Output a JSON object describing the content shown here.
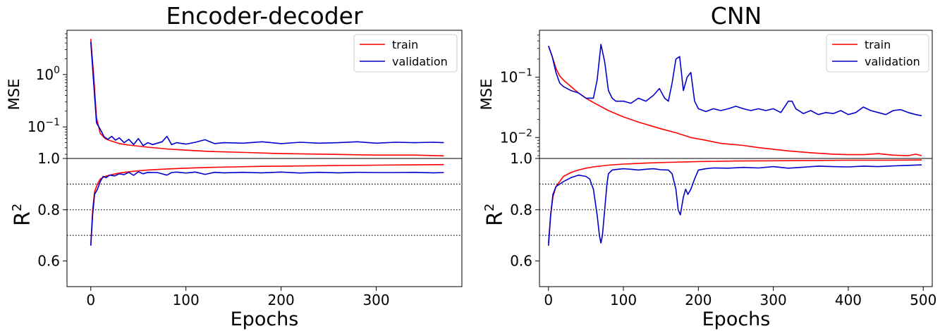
{
  "chart_data": [
    {
      "type": "line",
      "title": "Encoder-decoder",
      "xlabel": "Epochs",
      "xlim": [
        -25,
        390
      ],
      "xticks": [
        0,
        100,
        200,
        300
      ],
      "mse_panel": {
        "ylabel": "MSE",
        "yscale": "log",
        "ylim": [
          0.025,
          7
        ],
        "ytick_labels": [
          {
            "value": 1,
            "base": "10",
            "exp": "0"
          },
          {
            "value": 0.1,
            "base": "10",
            "exp": "−1"
          }
        ],
        "legend": {
          "placement": "top-right",
          "entries": [
            "train",
            "validation"
          ]
        },
        "series": [
          {
            "name": "train",
            "color": "#ff0000",
            "x": [
              0,
              3,
              6,
              10,
              15,
              20,
              30,
              40,
              50,
              60,
              80,
              100,
              125,
              150,
              175,
              200,
              250,
              300,
              340,
              371
            ],
            "y": [
              4.8,
              1.0,
              0.15,
              0.075,
              0.06,
              0.055,
              0.048,
              0.045,
              0.043,
              0.041,
              0.038,
              0.036,
              0.034,
              0.033,
              0.032,
              0.031,
              0.03,
              0.029,
              0.029,
              0.028
            ]
          },
          {
            "name": "validation",
            "color": "#0000cc",
            "x": [
              0,
              3,
              6,
              10,
              14,
              18,
              22,
              26,
              30,
              35,
              40,
              45,
              50,
              55,
              60,
              65,
              70,
              75,
              80,
              85,
              90,
              100,
              110,
              120,
              130,
              140,
              160,
              180,
              200,
              220,
              240,
              260,
              280,
              300,
              320,
              340,
              360,
              371
            ],
            "y": [
              4.2,
              0.7,
              0.12,
              0.09,
              0.065,
              0.058,
              0.066,
              0.056,
              0.062,
              0.05,
              0.058,
              0.046,
              0.06,
              0.044,
              0.05,
              0.046,
              0.049,
              0.052,
              0.066,
              0.046,
              0.05,
              0.047,
              0.051,
              0.057,
              0.048,
              0.05,
              0.049,
              0.052,
              0.048,
              0.051,
              0.049,
              0.05,
              0.052,
              0.049,
              0.051,
              0.05,
              0.051,
              0.05
            ]
          }
        ]
      },
      "r2_panel": {
        "ylabel": "R",
        "ylabel_sup": "2",
        "ylim": [
          0.5,
          1.0
        ],
        "yticks": [
          "1.0",
          "0.8",
          "0.6"
        ],
        "ytick_values": [
          1.0,
          0.8,
          0.6
        ],
        "dotted_lines": [
          0.9,
          0.8,
          0.7
        ],
        "series": [
          {
            "name": "train",
            "color": "#ff0000",
            "x": [
              0,
              2,
              4,
              7,
              10,
              15,
              20,
              30,
              40,
              50,
              60,
              80,
              100,
              125,
              150,
              175,
              200,
              250,
              300,
              340,
              371
            ],
            "y": [
              0.66,
              0.8,
              0.87,
              0.9,
              0.92,
              0.93,
              0.935,
              0.943,
              0.948,
              0.952,
              0.955,
              0.959,
              0.962,
              0.965,
              0.967,
              0.969,
              0.97,
              0.972,
              0.974,
              0.975,
              0.976
            ]
          },
          {
            "name": "validation",
            "color": "#0000cc",
            "x": [
              0,
              2,
              4,
              7,
              10,
              13,
              16,
              20,
              25,
              30,
              35,
              40,
              45,
              50,
              55,
              60,
              70,
              80,
              85,
              90,
              100,
              110,
              120,
              130,
              140,
              160,
              180,
              200,
              220,
              240,
              260,
              280,
              300,
              320,
              340,
              360,
              371
            ],
            "y": [
              0.66,
              0.78,
              0.86,
              0.88,
              0.91,
              0.93,
              0.925,
              0.935,
              0.932,
              0.94,
              0.937,
              0.946,
              0.934,
              0.948,
              0.94,
              0.946,
              0.945,
              0.935,
              0.945,
              0.947,
              0.943,
              0.947,
              0.938,
              0.946,
              0.944,
              0.946,
              0.944,
              0.947,
              0.943,
              0.946,
              0.944,
              0.946,
              0.945,
              0.945,
              0.946,
              0.944,
              0.945
            ]
          }
        ]
      }
    },
    {
      "type": "line",
      "title": "CNN",
      "xlabel": "Epochs",
      "xlim": [
        -12,
        512
      ],
      "xticks": [
        0,
        100,
        200,
        300,
        400,
        500
      ],
      "mse_panel": {
        "ylabel": "MSE",
        "yscale": "log",
        "ylim": [
          0.0045,
          0.6
        ],
        "ytick_labels": [
          {
            "value": 0.1,
            "base": "10",
            "exp": "−1"
          },
          {
            "value": 0.01,
            "base": "10",
            "exp": "−2"
          }
        ],
        "legend": {
          "placement": "top-right",
          "entries": [
            "train",
            "validation"
          ]
        },
        "series": [
          {
            "name": "train",
            "color": "#ff0000",
            "x": [
              0,
              5,
              10,
              15,
              20,
              30,
              40,
              50,
              60,
              80,
              100,
              120,
              150,
              170,
              190,
              210,
              230,
              260,
              280,
              300,
              320,
              350,
              380,
              400,
              420,
              440,
              460,
              480,
              490,
              498
            ],
            "y": [
              0.33,
              0.22,
              0.14,
              0.105,
              0.09,
              0.07,
              0.055,
              0.045,
              0.038,
              0.028,
              0.022,
              0.018,
              0.014,
              0.012,
              0.01,
              0.009,
              0.008,
              0.0074,
              0.0068,
              0.0064,
              0.006,
              0.0056,
              0.0053,
              0.0052,
              0.0052,
              0.0054,
              0.0051,
              0.005,
              0.0053,
              0.005
            ]
          },
          {
            "name": "validation",
            "color": "#0000cc",
            "x": [
              0,
              5,
              10,
              15,
              20,
              30,
              40,
              50,
              60,
              65,
              70,
              75,
              80,
              85,
              90,
              100,
              110,
              120,
              130,
              140,
              148,
              155,
              160,
              165,
              170,
              175,
              180,
              185,
              190,
              195,
              200,
              210,
              220,
              230,
              240,
              250,
              260,
              270,
              280,
              290,
              300,
              310,
              320,
              325,
              330,
              340,
              350,
              360,
              370,
              380,
              390,
              400,
              410,
              420,
              430,
              440,
              450,
              460,
              470,
              480,
              490,
              498
            ],
            "y": [
              0.33,
              0.22,
              0.12,
              0.08,
              0.07,
              0.06,
              0.055,
              0.045,
              0.045,
              0.09,
              0.35,
              0.18,
              0.06,
              0.045,
              0.04,
              0.04,
              0.037,
              0.045,
              0.04,
              0.05,
              0.065,
              0.045,
              0.04,
              0.08,
              0.2,
              0.22,
              0.06,
              0.1,
              0.12,
              0.04,
              0.03,
              0.027,
              0.03,
              0.028,
              0.03,
              0.033,
              0.03,
              0.028,
              0.03,
              0.028,
              0.03,
              0.026,
              0.04,
              0.04,
              0.03,
              0.025,
              0.028,
              0.024,
              0.026,
              0.025,
              0.028,
              0.024,
              0.026,
              0.032,
              0.028,
              0.026,
              0.024,
              0.028,
              0.029,
              0.026,
              0.024,
              0.023
            ]
          }
        ]
      },
      "r2_panel": {
        "ylabel": "R",
        "ylabel_sup": "2",
        "ylim": [
          0.5,
          1.0
        ],
        "yticks": [
          "1.0",
          "0.8",
          "0.6"
        ],
        "ytick_values": [
          1.0,
          0.8,
          0.6
        ],
        "dotted_lines": [
          0.9,
          0.8,
          0.7
        ],
        "series": [
          {
            "name": "train",
            "color": "#ff0000",
            "x": [
              0,
              3,
              6,
              10,
              15,
              20,
              30,
              40,
              50,
              60,
              80,
              100,
              130,
              160,
              200,
              250,
              300,
              350,
              400,
              450,
              498
            ],
            "y": [
              0.67,
              0.78,
              0.85,
              0.89,
              0.91,
              0.93,
              0.945,
              0.955,
              0.962,
              0.967,
              0.974,
              0.978,
              0.982,
              0.985,
              0.988,
              0.99,
              0.991,
              0.992,
              0.993,
              0.993,
              0.994
            ]
          },
          {
            "name": "validation",
            "color": "#0000cc",
            "x": [
              0,
              3,
              6,
              10,
              15,
              20,
              30,
              40,
              50,
              55,
              60,
              65,
              68,
              70,
              72,
              75,
              78,
              80,
              85,
              90,
              100,
              110,
              120,
              130,
              140,
              150,
              160,
              165,
              170,
              173,
              176,
              180,
              183,
              186,
              190,
              195,
              200,
              210,
              220,
              240,
              260,
              280,
              300,
              320,
              340,
              360,
              380,
              400,
              420,
              440,
              460,
              480,
              498
            ],
            "y": [
              0.66,
              0.78,
              0.86,
              0.89,
              0.9,
              0.91,
              0.925,
              0.935,
              0.93,
              0.92,
              0.88,
              0.78,
              0.7,
              0.67,
              0.7,
              0.8,
              0.9,
              0.94,
              0.955,
              0.957,
              0.96,
              0.958,
              0.955,
              0.958,
              0.96,
              0.956,
              0.955,
              0.94,
              0.88,
              0.8,
              0.78,
              0.85,
              0.88,
              0.86,
              0.88,
              0.92,
              0.955,
              0.96,
              0.963,
              0.962,
              0.965,
              0.963,
              0.968,
              0.962,
              0.966,
              0.97,
              0.968,
              0.967,
              0.97,
              0.968,
              0.971,
              0.973,
              0.975
            ]
          }
        ]
      }
    }
  ]
}
